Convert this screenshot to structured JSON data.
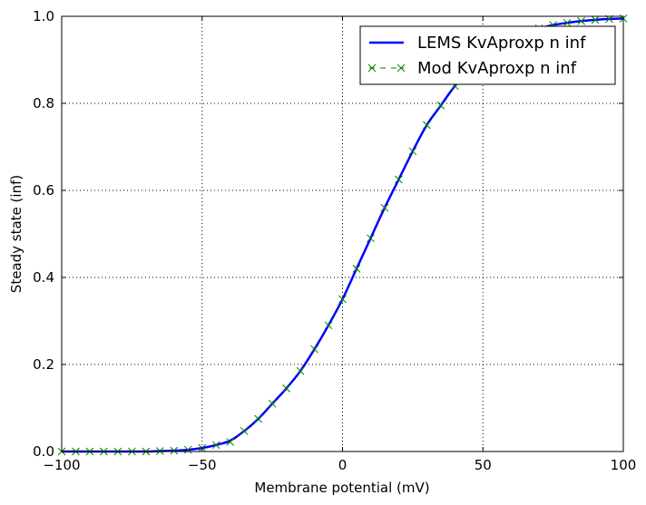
{
  "chart_data": {
    "type": "line",
    "title": "",
    "xlabel": "Membrane potential (mV)",
    "ylabel": "Steady state (inf)",
    "xlim": [
      -100,
      100
    ],
    "ylim": [
      0,
      1.0
    ],
    "xticks": [
      -100,
      -50,
      0,
      50,
      100
    ],
    "xtick_labels": [
      "−100",
      "−50",
      "0",
      "50",
      "100"
    ],
    "yticks": [
      0,
      0.2,
      0.4,
      0.6,
      0.8,
      1.0
    ],
    "ytick_labels": [
      "0.0",
      "0.2",
      "0.4",
      "0.6",
      "0.8",
      "1.0"
    ],
    "grid": true,
    "legend_position": "top-right",
    "series": [
      {
        "name": "LEMS KvAproxp n inf",
        "color": "#0000ff",
        "style": "solid-line",
        "x": [
          -100,
          -95,
          -90,
          -85,
          -80,
          -75,
          -70,
          -65,
          -60,
          -55,
          -50,
          -45,
          -40,
          -35,
          -30,
          -25,
          -20,
          -15,
          -10,
          -5,
          0,
          5,
          10,
          15,
          20,
          25,
          30,
          35,
          40,
          45,
          50,
          55,
          60,
          65,
          70,
          75,
          80,
          85,
          90,
          95,
          100
        ],
        "y": [
          0.0,
          0.0,
          0.0,
          0.0,
          0.0,
          0.0,
          0.0,
          0.001,
          0.002,
          0.004,
          0.008,
          0.015,
          0.025,
          0.047,
          0.075,
          0.11,
          0.145,
          0.185,
          0.235,
          0.29,
          0.35,
          0.42,
          0.49,
          0.56,
          0.625,
          0.69,
          0.75,
          0.795,
          0.84,
          0.875,
          0.905,
          0.93,
          0.948,
          0.962,
          0.972,
          0.98,
          0.985,
          0.989,
          0.992,
          0.994,
          0.995
        ]
      },
      {
        "name": "Mod KvAproxp n inf",
        "color": "#008000",
        "style": "dashed-line-x-markers",
        "x": [
          -100,
          -95,
          -90,
          -85,
          -80,
          -75,
          -70,
          -65,
          -60,
          -55,
          -50,
          -45,
          -40,
          -35,
          -30,
          -25,
          -20,
          -15,
          -10,
          -5,
          0,
          5,
          10,
          15,
          20,
          25,
          30,
          35,
          40,
          45,
          50,
          55,
          60,
          65,
          70,
          75,
          80,
          85,
          90,
          95,
          100
        ],
        "y": [
          0.0,
          0.0,
          0.0,
          0.0,
          0.0,
          0.0,
          0.0,
          0.001,
          0.002,
          0.004,
          0.008,
          0.015,
          0.022,
          0.047,
          0.075,
          0.11,
          0.145,
          0.185,
          0.235,
          0.29,
          0.35,
          0.42,
          0.49,
          0.56,
          0.625,
          0.69,
          0.75,
          0.795,
          0.84,
          0.875,
          0.905,
          0.93,
          0.948,
          0.962,
          0.972,
          0.98,
          0.985,
          0.989,
          0.992,
          0.994,
          0.995
        ]
      }
    ]
  }
}
